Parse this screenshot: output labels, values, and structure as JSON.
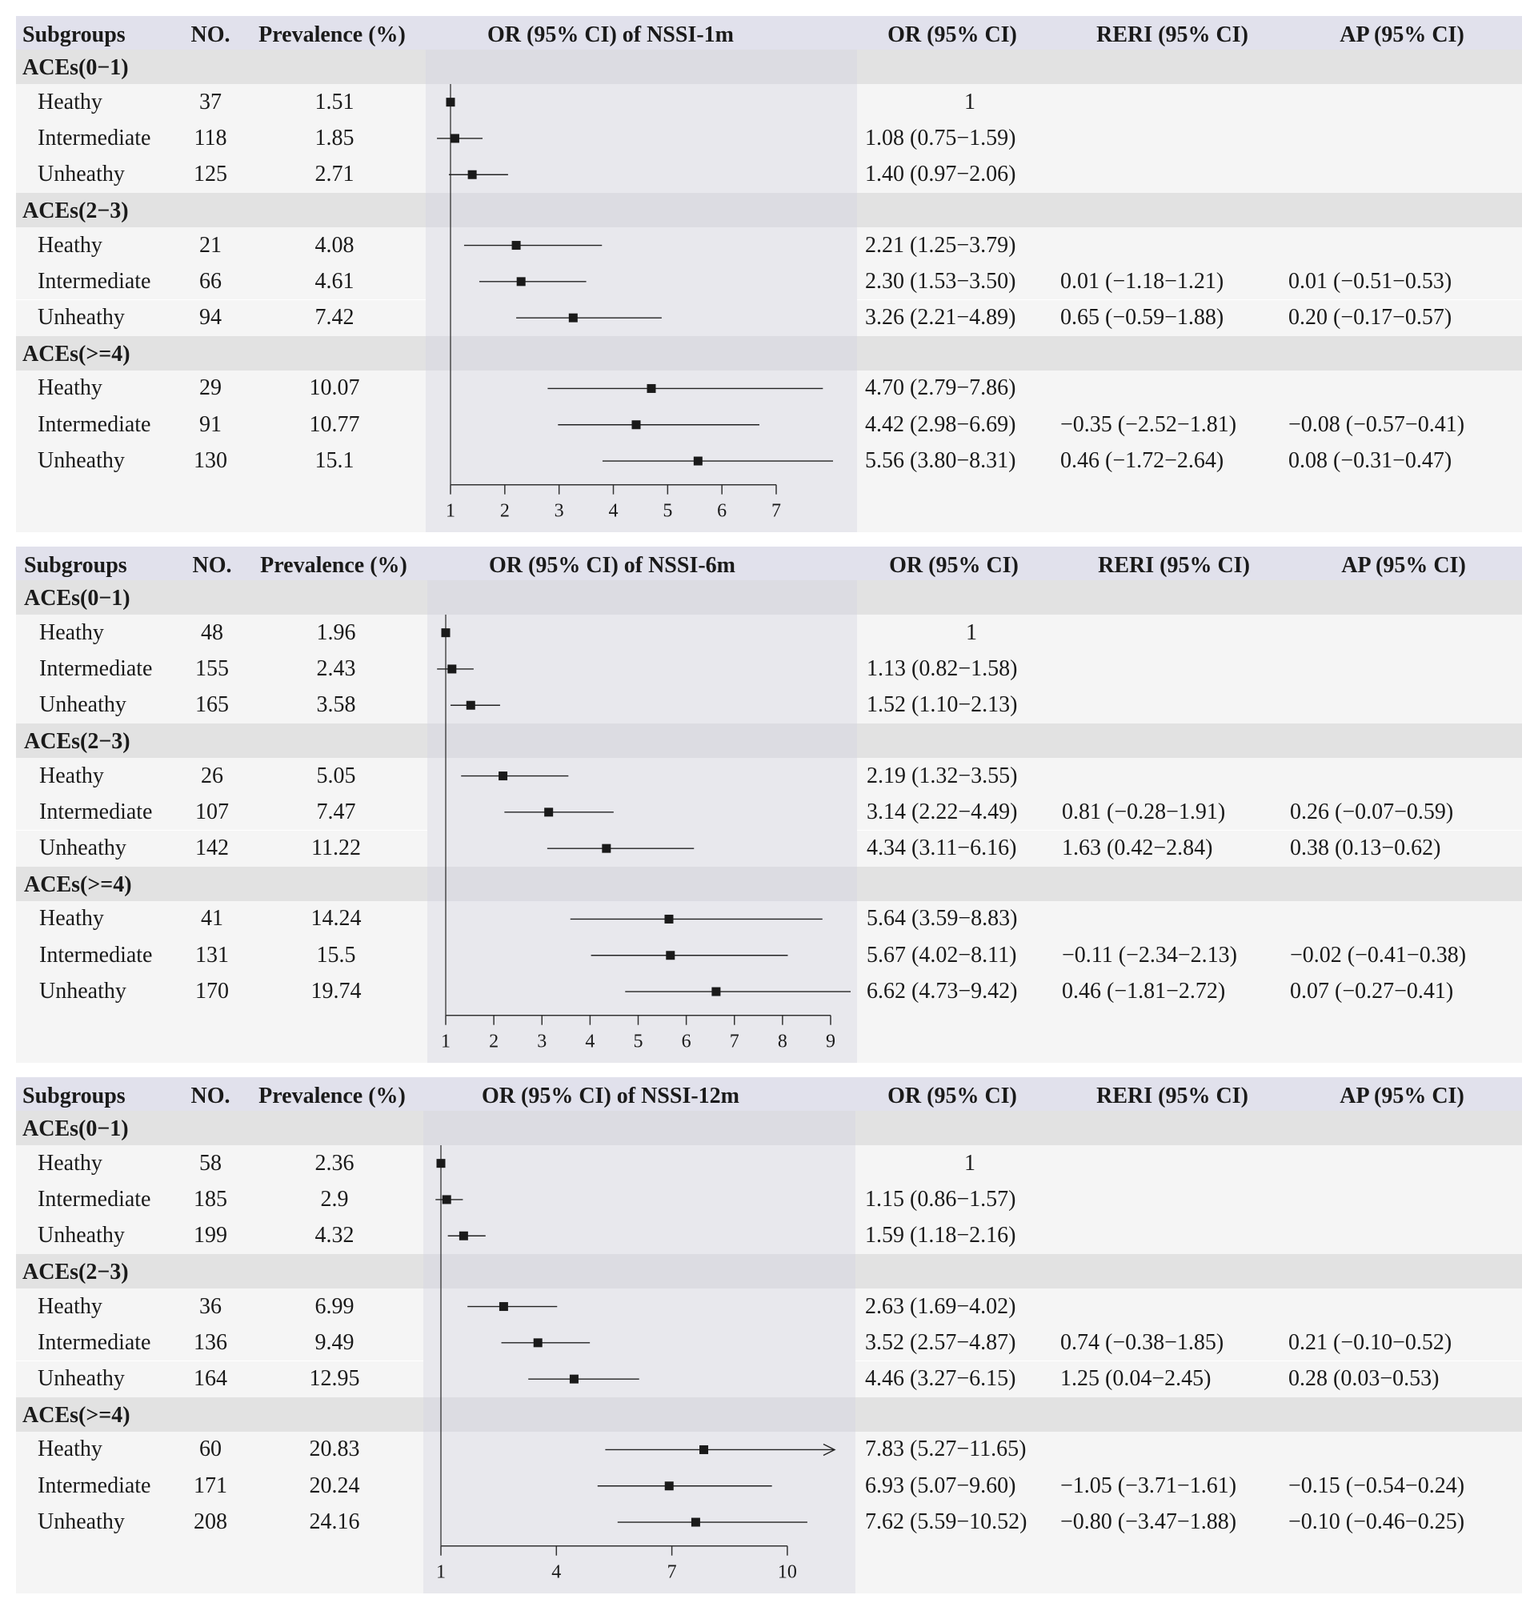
{
  "columns": {
    "subgroups": "Subgroups",
    "no": "NO.",
    "prevalence": "Prevalence (%)",
    "or_ci": "OR (95% CI)",
    "reri": "RERI (95% CI)",
    "ap": "AP (95% CI)"
  },
  "chart_data": [
    {
      "type": "forest",
      "title": "OR (95% CI) of NSSI-1m",
      "xticks": [
        1,
        2,
        3,
        4,
        5,
        6,
        7
      ],
      "reference": 1,
      "groups": [
        {
          "label": "ACEs(0−1)",
          "rows": [
            {
              "label": "Heathy",
              "no": "37",
              "prevalence": "1.51",
              "or": 1.0,
              "lo": 1.0,
              "hi": 1.0,
              "or_text": "1",
              "reri": "",
              "ap": ""
            },
            {
              "label": "Intermediate",
              "no": "118",
              "prevalence": "1.85",
              "or": 1.08,
              "lo": 0.75,
              "hi": 1.59,
              "or_text": "1.08 (0.75−1.59)",
              "reri": "",
              "ap": ""
            },
            {
              "label": "Unheathy",
              "no": "125",
              "prevalence": "2.71",
              "or": 1.4,
              "lo": 0.97,
              "hi": 2.06,
              "or_text": "1.40 (0.97−2.06)",
              "reri": "",
              "ap": ""
            }
          ]
        },
        {
          "label": "ACEs(2−3)",
          "rows": [
            {
              "label": "Heathy",
              "no": "21",
              "prevalence": "4.08",
              "or": 2.21,
              "lo": 1.25,
              "hi": 3.79,
              "or_text": "2.21 (1.25−3.79)",
              "reri": "",
              "ap": ""
            },
            {
              "label": "Intermediate",
              "no": "66",
              "prevalence": "4.61",
              "or": 2.3,
              "lo": 1.53,
              "hi": 3.5,
              "or_text": "2.30 (1.53−3.50)",
              "reri": "0.01 (−1.18−1.21)",
              "ap": "0.01 (−0.51−0.53)"
            },
            {
              "label": "Unheathy",
              "no": "94",
              "prevalence": "7.42",
              "or": 3.26,
              "lo": 2.21,
              "hi": 4.89,
              "or_text": "3.26 (2.21−4.89)",
              "reri": "0.65 (−0.59−1.88)",
              "ap": "0.20 (−0.17−0.57)"
            }
          ]
        },
        {
          "label": "ACEs(>=4)",
          "rows": [
            {
              "label": "Heathy",
              "no": "29",
              "prevalence": "10.07",
              "or": 4.7,
              "lo": 2.79,
              "hi": 7.86,
              "or_text": "4.70 (2.79−7.86)",
              "reri": "",
              "ap": ""
            },
            {
              "label": "Intermediate",
              "no": "91",
              "prevalence": "10.77",
              "or": 4.42,
              "lo": 2.98,
              "hi": 6.69,
              "or_text": "4.42 (2.98−6.69)",
              "reri": "−0.35 (−2.52−1.81)",
              "ap": "−0.08 (−0.57−0.41)"
            },
            {
              "label": "Unheathy",
              "no": "130",
              "prevalence": "15.1",
              "or": 5.56,
              "lo": 3.8,
              "hi": 8.31,
              "or_text": "5.56 (3.80−8.31)",
              "reri": "0.46 (−1.72−2.64)",
              "ap": "0.08 (−0.31−0.47)"
            }
          ]
        }
      ]
    },
    {
      "type": "forest",
      "title": "OR (95% CI) of NSSI-6m",
      "xticks": [
        1,
        2,
        3,
        4,
        5,
        6,
        7,
        8,
        9
      ],
      "reference": 1,
      "groups": [
        {
          "label": "ACEs(0−1)",
          "rows": [
            {
              "label": "Heathy",
              "no": "48",
              "prevalence": "1.96",
              "or": 1.0,
              "lo": 1.0,
              "hi": 1.0,
              "or_text": "1",
              "reri": "",
              "ap": ""
            },
            {
              "label": "Intermediate",
              "no": "155",
              "prevalence": "2.43",
              "or": 1.13,
              "lo": 0.82,
              "hi": 1.58,
              "or_text": "1.13 (0.82−1.58)",
              "reri": "",
              "ap": ""
            },
            {
              "label": "Unheathy",
              "no": "165",
              "prevalence": "3.58",
              "or": 1.52,
              "lo": 1.1,
              "hi": 2.13,
              "or_text": "1.52 (1.10−2.13)",
              "reri": "",
              "ap": ""
            }
          ]
        },
        {
          "label": "ACEs(2−3)",
          "rows": [
            {
              "label": "Heathy",
              "no": "26",
              "prevalence": "5.05",
              "or": 2.19,
              "lo": 1.32,
              "hi": 3.55,
              "or_text": "2.19 (1.32−3.55)",
              "reri": "",
              "ap": ""
            },
            {
              "label": "Intermediate",
              "no": "107",
              "prevalence": "7.47",
              "or": 3.14,
              "lo": 2.22,
              "hi": 4.49,
              "or_text": "3.14 (2.22−4.49)",
              "reri": "0.81 (−0.28−1.91)",
              "ap": "0.26 (−0.07−0.59)"
            },
            {
              "label": "Unheathy",
              "no": "142",
              "prevalence": "11.22",
              "or": 4.34,
              "lo": 3.11,
              "hi": 6.16,
              "or_text": "4.34 (3.11−6.16)",
              "reri": "1.63 (0.42−2.84)",
              "ap": "0.38 (0.13−0.62)"
            }
          ]
        },
        {
          "label": "ACEs(>=4)",
          "rows": [
            {
              "label": "Heathy",
              "no": "41",
              "prevalence": "14.24",
              "or": 5.64,
              "lo": 3.59,
              "hi": 8.83,
              "or_text": "5.64 (3.59−8.83)",
              "reri": "",
              "ap": ""
            },
            {
              "label": "Intermediate",
              "no": "131",
              "prevalence": "15.5",
              "or": 5.67,
              "lo": 4.02,
              "hi": 8.11,
              "or_text": "5.67 (4.02−8.11)",
              "reri": "−0.11 (−2.34−2.13)",
              "ap": "−0.02 (−0.41−0.38)"
            },
            {
              "label": "Unheathy",
              "no": "170",
              "prevalence": "19.74",
              "or": 6.62,
              "lo": 4.73,
              "hi": 9.42,
              "or_text": "6.62 (4.73−9.42)",
              "reri": "0.46 (−1.81−2.72)",
              "ap": "0.07 (−0.27−0.41)"
            }
          ]
        }
      ]
    },
    {
      "type": "forest",
      "title": "OR (95% CI) of NSSI-12m",
      "xticks": [
        1,
        4,
        7,
        10
      ],
      "reference": 1,
      "groups": [
        {
          "label": "ACEs(0−1)",
          "rows": [
            {
              "label": "Heathy",
              "no": "58",
              "prevalence": "2.36",
              "or": 1.0,
              "lo": 1.0,
              "hi": 1.0,
              "or_text": "1",
              "reri": "",
              "ap": ""
            },
            {
              "label": "Intermediate",
              "no": "185",
              "prevalence": "2.9",
              "or": 1.15,
              "lo": 0.86,
              "hi": 1.57,
              "or_text": "1.15 (0.86−1.57)",
              "reri": "",
              "ap": ""
            },
            {
              "label": "Unheathy",
              "no": "199",
              "prevalence": "4.32",
              "or": 1.59,
              "lo": 1.18,
              "hi": 2.16,
              "or_text": "1.59 (1.18−2.16)",
              "reri": "",
              "ap": ""
            }
          ]
        },
        {
          "label": "ACEs(2−3)",
          "rows": [
            {
              "label": "Heathy",
              "no": "36",
              "prevalence": "6.99",
              "or": 2.63,
              "lo": 1.69,
              "hi": 4.02,
              "or_text": "2.63 (1.69−4.02)",
              "reri": "",
              "ap": ""
            },
            {
              "label": "Intermediate",
              "no": "136",
              "prevalence": "9.49",
              "or": 3.52,
              "lo": 2.57,
              "hi": 4.87,
              "or_text": "3.52 (2.57−4.87)",
              "reri": "0.74 (−0.38−1.85)",
              "ap": "0.21 (−0.10−0.52)"
            },
            {
              "label": "Unheathy",
              "no": "164",
              "prevalence": "12.95",
              "or": 4.46,
              "lo": 3.27,
              "hi": 6.15,
              "or_text": "4.46 (3.27−6.15)",
              "reri": "1.25 (0.04−2.45)",
              "ap": "0.28 (0.03−0.53)"
            }
          ]
        },
        {
          "label": "ACEs(>=4)",
          "rows": [
            {
              "label": "Heathy",
              "no": "60",
              "prevalence": "20.83",
              "or": 7.83,
              "lo": 5.27,
              "hi": 11.65,
              "or_text": "7.83 (5.27−11.65)",
              "reri": "",
              "ap": ""
            },
            {
              "label": "Intermediate",
              "no": "171",
              "prevalence": "20.24",
              "or": 6.93,
              "lo": 5.07,
              "hi": 9.6,
              "or_text": "6.93 (5.07−9.60)",
              "reri": "−1.05 (−3.71−1.61)",
              "ap": "−0.15 (−0.54−0.24)"
            },
            {
              "label": "Unheathy",
              "no": "208",
              "prevalence": "24.16",
              "or": 7.62,
              "lo": 5.59,
              "hi": 10.52,
              "or_text": "7.62 (5.59−10.52)",
              "reri": "−0.80 (−3.47−1.88)",
              "ap": "−0.10 (−0.46−0.25)"
            }
          ]
        }
      ]
    }
  ]
}
